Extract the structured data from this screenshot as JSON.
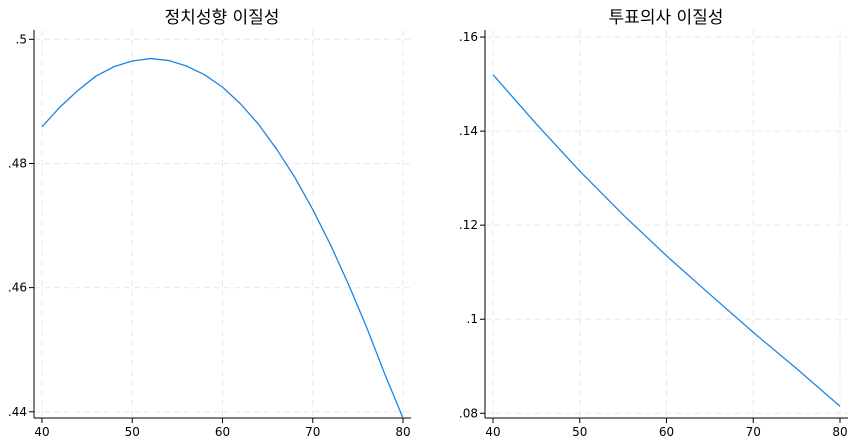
{
  "chart_data": [
    {
      "type": "line",
      "title": "정치성향 이질성",
      "xlabel": "",
      "ylabel": "",
      "xlim": [
        40,
        80
      ],
      "ylim": [
        0.439,
        0.5015
      ],
      "xticks": [
        40,
        50,
        60,
        70,
        80
      ],
      "xtick_labels": [
        "40",
        "50",
        "60",
        "70",
        "80"
      ],
      "yticks": [
        0.44,
        0.46,
        0.48,
        0.5
      ],
      "ytick_labels": [
        ".44",
        ".46",
        ".48",
        ".5"
      ],
      "grid": true,
      "line_color": "#1a86e8",
      "series": [
        {
          "x": [
            40,
            42,
            44,
            46,
            48,
            50,
            52,
            54,
            56,
            58,
            60,
            62,
            64,
            66,
            68,
            70,
            72,
            74,
            76,
            78,
            80
          ],
          "y": [
            0.4859,
            0.4891,
            0.4918,
            0.4941,
            0.4956,
            0.4965,
            0.4969,
            0.4966,
            0.4957,
            0.4943,
            0.4923,
            0.4896,
            0.4863,
            0.4823,
            0.4778,
            0.4726,
            0.4668,
            0.4604,
            0.4535,
            0.446,
            0.439
          ]
        }
      ]
    },
    {
      "type": "line",
      "title": "투표의사 이질성",
      "xlabel": "",
      "ylabel": "",
      "xlim": [
        40,
        80
      ],
      "ylim": [
        0.079,
        0.1615
      ],
      "xticks": [
        40,
        50,
        60,
        70,
        80
      ],
      "xtick_labels": [
        "40",
        "50",
        "60",
        "70",
        "80"
      ],
      "yticks": [
        0.08,
        0.1,
        0.12,
        0.14,
        0.16
      ],
      "ytick_labels": [
        ".08",
        ".1",
        ".12",
        ".14",
        ".16"
      ],
      "grid": true,
      "line_color": "#1a86e8",
      "series": [
        {
          "x": [
            40,
            45,
            50,
            55,
            60,
            65,
            70,
            75,
            80
          ],
          "y": [
            0.152,
            0.1415,
            0.1315,
            0.1222,
            0.1135,
            0.1053,
            0.0972,
            0.0895,
            0.0815
          ]
        }
      ]
    }
  ]
}
